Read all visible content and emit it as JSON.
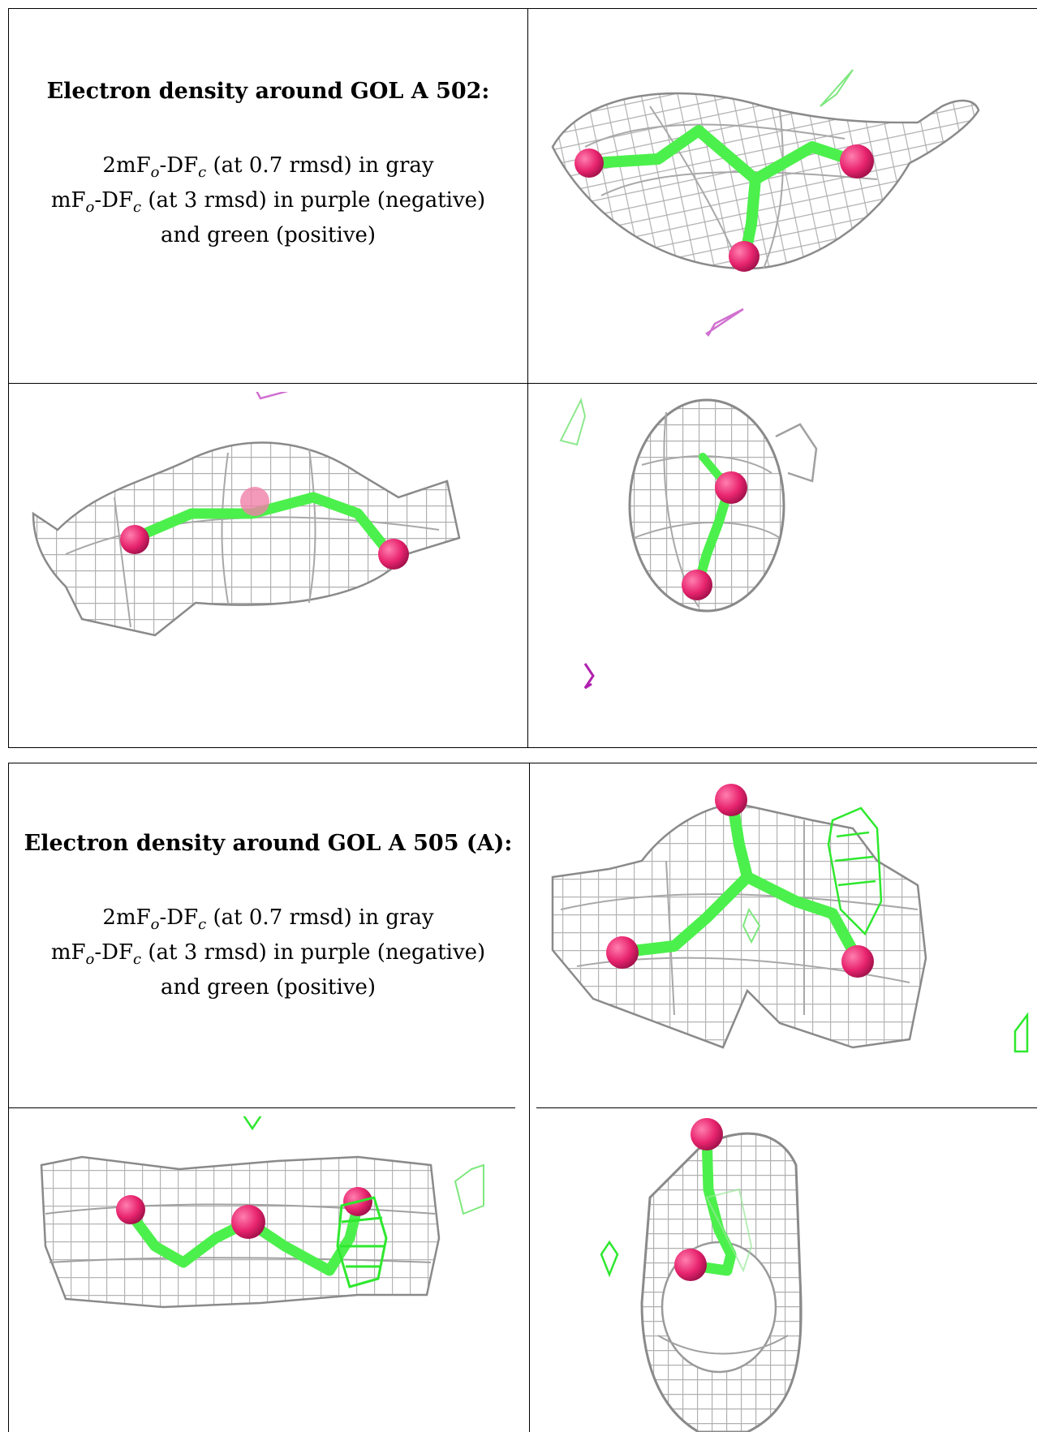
{
  "sections": [
    {
      "heading": "Electron density around GOL A 502:",
      "line1_main": "2mF",
      "line1_sub1": "o",
      "line1_mid": "-DF",
      "line1_sub2": "c",
      "line1_rest": " (at 0.7 rmsd) in gray",
      "line2_main": "mF",
      "line2_sub1": "o",
      "line2_mid": "-DF",
      "line2_sub2": "c",
      "line2_rest": " (at 3 rmsd) in purple (negative)",
      "line3": "and green (positive)"
    },
    {
      "heading": "Electron density around GOL A 505 (A):",
      "line1_main": "2mF",
      "line1_sub1": "o",
      "line1_mid": "-DF",
      "line1_sub2": "c",
      "line1_rest": " (at 0.7 rmsd) in gray",
      "line2_main": "mF",
      "line2_sub1": "o",
      "line2_mid": "-DF",
      "line2_sub2": "c",
      "line2_rest": " (at 3 rmsd) in purple (negative)",
      "line3": "and green (positive)"
    }
  ],
  "colors": {
    "mesh_gray": "#b8b8b8",
    "mesh_dark": "#8a8a8a",
    "carbon_green": "#4cf04c",
    "oxygen_pink": "#e8246e",
    "positive_green": "#2ee82e",
    "negative_purple": "#c040c0"
  }
}
